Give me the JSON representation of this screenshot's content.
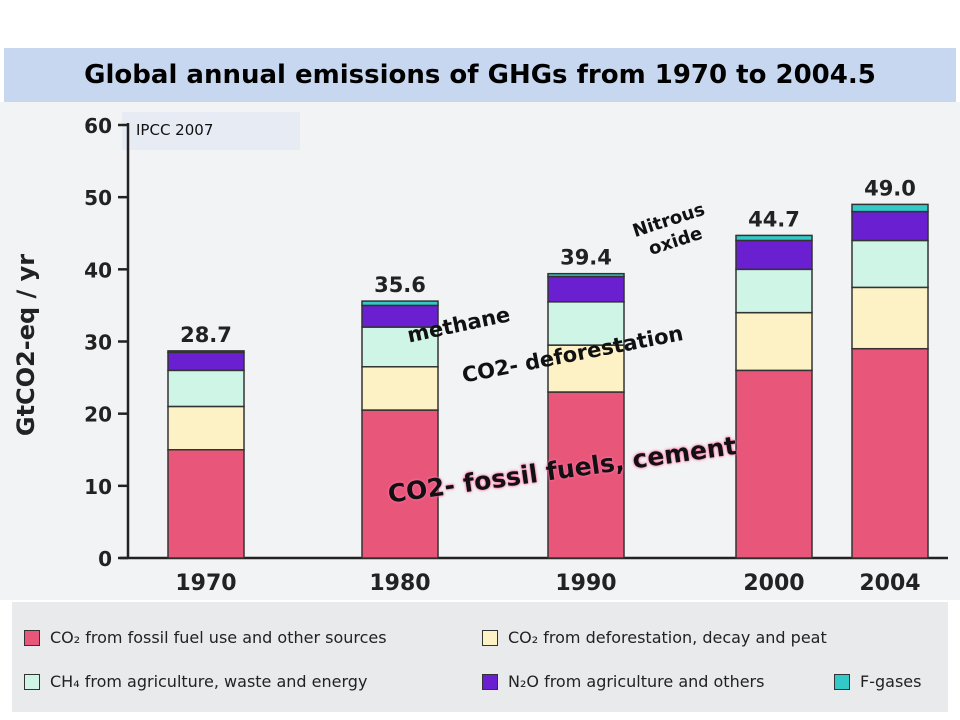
{
  "title": "Global annual emissions of GHGs from 1970 to 2004.5",
  "source_note": "IPCC 2007",
  "chart_data": {
    "type": "bar",
    "stacked": true,
    "categories": [
      "1970",
      "1980",
      "1990",
      "2000",
      "2004"
    ],
    "ylabel": "GtCO2-eq / yr",
    "ylim": [
      0,
      60
    ],
    "yticks": [
      0,
      10,
      20,
      30,
      40,
      50,
      60
    ],
    "totals": [
      "28.7",
      "35.6",
      "39.4",
      "44.7",
      "49.0"
    ],
    "series": [
      {
        "name": "CO2 from fossil fuel use and other sources",
        "color": "#e8577a",
        "values": [
          15.0,
          20.5,
          23.0,
          26.0,
          29.0
        ]
      },
      {
        "name": "CO2 from deforestation, decay and peat",
        "color": "#fcf2c6",
        "values": [
          6.0,
          6.0,
          6.5,
          8.0,
          8.5
        ]
      },
      {
        "name": "CH4 from agriculture, waste and energy",
        "color": "#cff5e6",
        "values": [
          5.0,
          5.5,
          6.0,
          6.0,
          6.5
        ]
      },
      {
        "name": "N2O from agriculture and others",
        "color": "#6a1fd0",
        "values": [
          2.5,
          3.0,
          3.5,
          4.0,
          4.0
        ]
      },
      {
        "name": "F-gases",
        "color": "#33c9c9",
        "values": [
          0.2,
          0.6,
          0.4,
          0.7,
          1.0
        ]
      }
    ]
  },
  "legend": {
    "co2_fossil": "CO₂ from fossil fuel use and other sources",
    "co2_deforestation": "CO₂ from deforestation, decay and peat",
    "ch4": "CH₄ from agriculture, waste and energy",
    "n2o": "N₂O from agriculture and others",
    "fgases": "F-gases"
  },
  "annotations": {
    "nitrous_line1": "Nitrous",
    "nitrous_line2": "oxide",
    "methane": "methane",
    "co2_deforestation": "CO2- deforestation",
    "co2_fossil": "CO2- fossil fuels, cement"
  },
  "colors": {
    "co2_fossil": "#e8577a",
    "co2_deforestation": "#fcf2c6",
    "ch4": "#cff5e6",
    "n2o": "#6a1fd0",
    "fgases": "#33c9c9"
  }
}
